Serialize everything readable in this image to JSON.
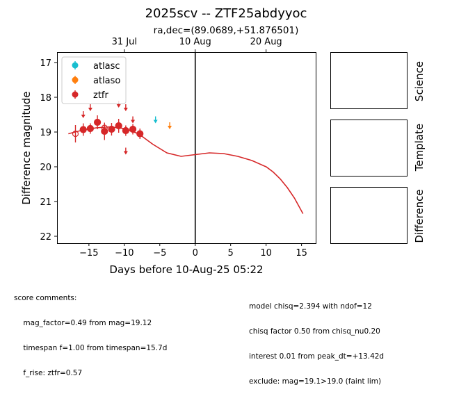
{
  "chart_data": {
    "type": "scatter",
    "title": "2025scv -- ZTF25abdyyoc",
    "subtitle": "ra,dec=(89.0689,+51.876501)",
    "xlabel": "Days before 10-Aug-25 05:22",
    "ylabel": "Difference magnitude",
    "xlim": [
      -19.5,
      17
    ],
    "ylim": [
      22.2,
      16.7
    ],
    "y_inverted": true,
    "xticks": [
      -15,
      -10,
      -5,
      0,
      5,
      10,
      15
    ],
    "xtick_labels": [
      "−15",
      "−10",
      "−5",
      "0",
      "5",
      "10",
      "15"
    ],
    "yticks": [
      17,
      18,
      19,
      20,
      21,
      22
    ],
    "ytick_labels": [
      "17",
      "18",
      "19",
      "20",
      "21",
      "22"
    ],
    "top_axis": {
      "ticks": [
        -10,
        0,
        10
      ],
      "labels": [
        "31 Jul",
        "10 Aug",
        "20 Aug"
      ]
    },
    "vline_x": 0,
    "legend_position": "top-left",
    "legend": [
      {
        "name": "atlasc",
        "color": "#17becf"
      },
      {
        "name": "atlaso",
        "color": "#ff7f0e"
      },
      {
        "name": "ztfr",
        "color": "#d62728"
      }
    ],
    "series": [
      {
        "name": "ztfr",
        "color": "#d62728",
        "detections": [
          {
            "x": -15.8,
            "y": 18.93,
            "err": 0.18
          },
          {
            "x": -14.8,
            "y": 18.9,
            "err": 0.15
          },
          {
            "x": -13.8,
            "y": 18.72,
            "err": 0.2
          },
          {
            "x": -12.8,
            "y": 18.98,
            "err": 0.25
          },
          {
            "x": -11.8,
            "y": 18.92,
            "err": 0.18
          },
          {
            "x": -10.8,
            "y": 18.82,
            "err": 0.2
          },
          {
            "x": -9.8,
            "y": 18.96,
            "err": 0.15
          },
          {
            "x": -8.8,
            "y": 18.92,
            "err": 0.15
          },
          {
            "x": -7.8,
            "y": 19.05,
            "err": 0.15
          }
        ],
        "open_points": [
          {
            "x": -16.9,
            "y": 19.05,
            "err": 0.25
          },
          {
            "x": -12.8,
            "y": 18.88,
            "err": 0.12
          }
        ],
        "upper_limits": [
          {
            "x": -15.8,
            "y": 18.5
          },
          {
            "x": -14.8,
            "y": 18.3
          },
          {
            "x": -10.8,
            "y": 18.2
          },
          {
            "x": -9.8,
            "y": 18.3
          },
          {
            "x": -8.8,
            "y": 18.65
          },
          {
            "x": -9.8,
            "y": 19.55
          }
        ]
      },
      {
        "name": "atlasc",
        "color": "#17becf",
        "detections": [],
        "upper_limits": [
          {
            "x": -5.6,
            "y": 18.65
          }
        ]
      },
      {
        "name": "atlaso",
        "color": "#ff7f0e",
        "detections": [],
        "upper_limits": [
          {
            "x": -3.6,
            "y": 18.82
          }
        ]
      }
    ],
    "model_curve": {
      "color": "#d62728",
      "x": [
        -17.9,
        -16,
        -14,
        -12,
        -10,
        -8,
        -6,
        -4,
        -2,
        0,
        2,
        4,
        6,
        8,
        10,
        11,
        12,
        13,
        14,
        15.2
      ],
      "y": [
        19.05,
        18.95,
        18.88,
        18.85,
        18.9,
        19.05,
        19.35,
        19.6,
        19.7,
        19.65,
        19.6,
        19.62,
        19.7,
        19.82,
        20.0,
        20.15,
        20.35,
        20.6,
        20.9,
        21.35
      ]
    }
  },
  "panels": {
    "science_label": "Science",
    "template_label": "Template",
    "difference_label": "Difference"
  },
  "comments": {
    "left": [
      "score comments:",
      "    mag_factor=0.49 from mag=19.12",
      "    timespan f=1.00 from timespan=15.7d",
      "    f_rise: ztfr=0.57"
    ],
    "right": [
      "model chisq=2.394 with ndof=12",
      "chisq factor 0.50 from chisq_nu0.20",
      "interest 0.01 from peak_dt=+13.42d",
      "exclude: mag=19.1>19.0 (faint lim)"
    ]
  }
}
